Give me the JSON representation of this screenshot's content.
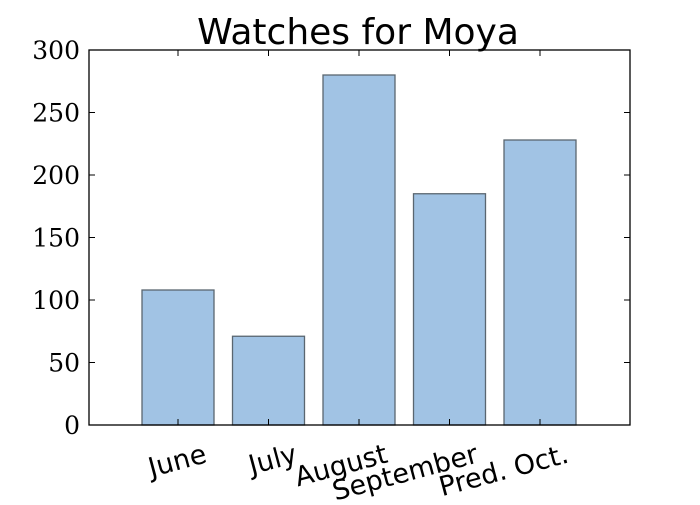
{
  "chart_data": {
    "type": "bar",
    "title": "Watches for Moya",
    "xlabel": "",
    "ylabel": "",
    "categories": [
      "June",
      "July",
      "August",
      "September",
      "Pred. Oct."
    ],
    "values": [
      108,
      71,
      280,
      185,
      228
    ],
    "ylim": [
      0,
      300
    ],
    "yticks": [
      0,
      50,
      100,
      150,
      200,
      250,
      300
    ],
    "grid": false,
    "legend": "none",
    "bar_color": "#a1c3e4",
    "bar_edge_color": "#5a6670"
  }
}
